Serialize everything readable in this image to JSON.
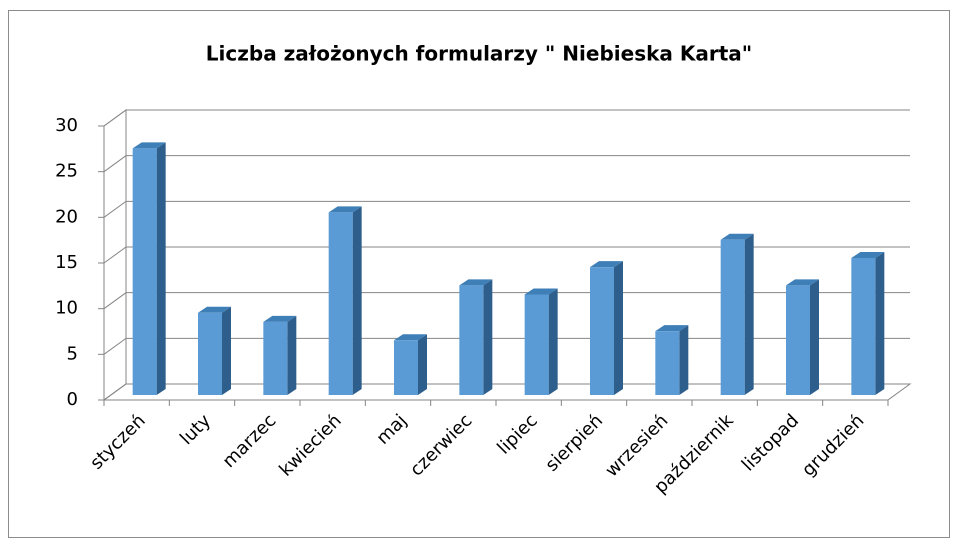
{
  "chart_data": {
    "type": "bar3d",
    "title": "Liczba założonych formularzy \" Niebieska Karta\"",
    "categories": [
      "styczeń",
      "luty",
      "marzec",
      "kwiecień",
      "maj",
      "czerwiec",
      "lipiec",
      "sierpień",
      "wrzesień",
      "październik",
      "listopad",
      "grudzień"
    ],
    "values": [
      27,
      9,
      8,
      20,
      6,
      12,
      11,
      14,
      7,
      17,
      12,
      15
    ],
    "color": "#5b9bd5",
    "ylim": [
      0,
      30
    ],
    "yticks": [
      0,
      5,
      10,
      15,
      20,
      25,
      30
    ],
    "grid": true
  }
}
